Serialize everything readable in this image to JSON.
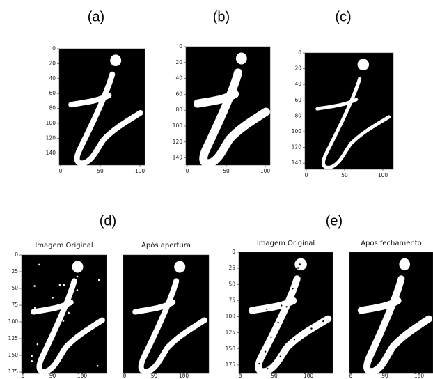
{
  "figure": {
    "panels": [
      {
        "label": "(a)",
        "subplots": [
          {
            "yticks": [
              0,
              20,
              40,
              60,
              80,
              100,
              120,
              140
            ],
            "xticks": [
              0,
              50,
              100
            ]
          }
        ]
      },
      {
        "label": "(b)",
        "subplots": [
          {
            "yticks": [
              0,
              20,
              40,
              60,
              80,
              100,
              120,
              140
            ],
            "xticks": [
              0,
              50,
              100
            ]
          }
        ]
      },
      {
        "label": "(c)",
        "subplots": [
          {
            "yticks": [
              0,
              20,
              40,
              60,
              80,
              100,
              120,
              140
            ],
            "xticks": [
              0,
              50,
              100
            ]
          }
        ]
      },
      {
        "label": "(d)",
        "subplots": [
          {
            "title": "Imagem Original",
            "yticks": [
              0,
              25,
              50,
              75,
              100,
              125,
              150,
              175
            ],
            "xticks": [
              0,
              50,
              100
            ]
          },
          {
            "title": "Após apertura",
            "xticks": [
              0,
              50,
              100
            ]
          }
        ]
      },
      {
        "label": "(e)",
        "subplots": [
          {
            "title": "Imagem Original",
            "yticks": [
              0,
              25,
              50,
              75,
              100,
              125,
              150,
              175
            ],
            "xticks": [
              0,
              50,
              100
            ]
          },
          {
            "title": "Após fechamento",
            "xticks": [
              0,
              50,
              100
            ]
          }
        ]
      }
    ]
  }
}
